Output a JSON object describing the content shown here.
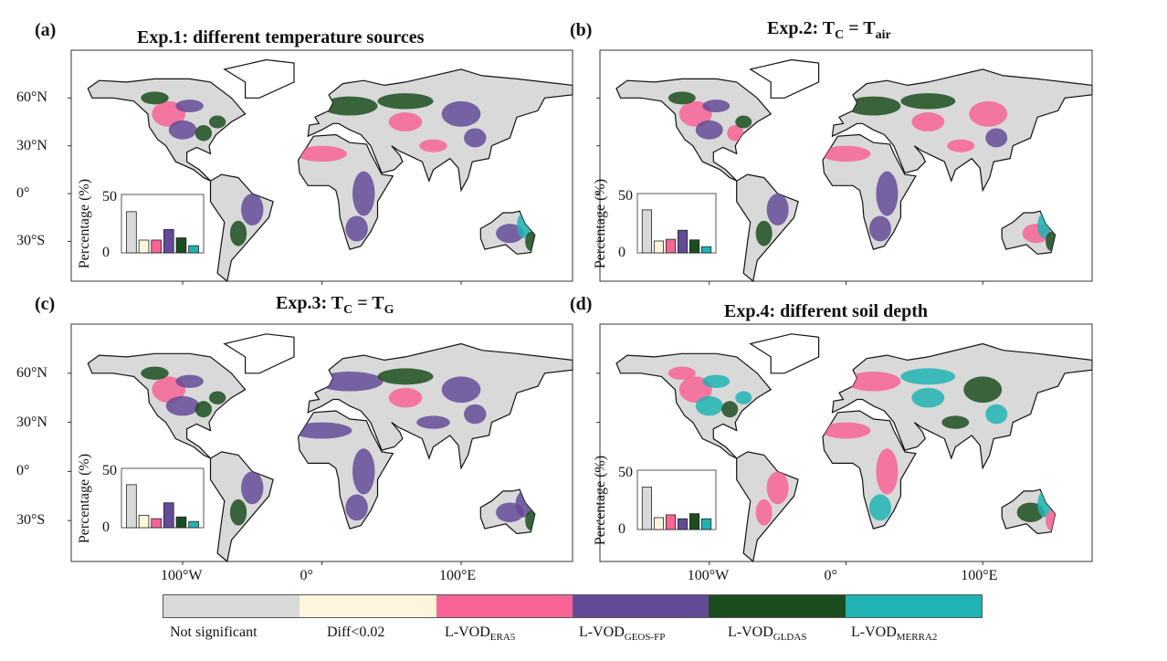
{
  "panels": [
    {
      "id": "a",
      "label": "(a)",
      "title": [
        {
          "text": "Exp.1: different temperature sources"
        }
      ]
    },
    {
      "id": "b",
      "label": "(b)",
      "title": [
        {
          "text": "Exp.2: T"
        },
        {
          "sub": "C"
        },
        {
          "text": " = T"
        },
        {
          "sub": "air"
        }
      ]
    },
    {
      "id": "c",
      "label": "(c)",
      "title": [
        {
          "text": "Exp.3: T"
        },
        {
          "sub": "C"
        },
        {
          "text": " = T"
        },
        {
          "sub": "G"
        }
      ]
    },
    {
      "id": "d",
      "label": "(d)",
      "title": [
        {
          "text": "Exp.4: different soil depth"
        }
      ]
    }
  ],
  "lat_ticks": [
    "60°N",
    "30°N",
    "0°",
    "30°S"
  ],
  "lon_ticks": [
    "100°W",
    "0°",
    "100°E"
  ],
  "legend": [
    {
      "text": "Not significant",
      "sub": "",
      "color": "#d9d9d9"
    },
    {
      "text": "Diff<0.02",
      "sub": "",
      "color": "#fdf6dc"
    },
    {
      "text": "L-VOD",
      "sub": "ERA5",
      "color": "#f76495"
    },
    {
      "text": "L-VOD",
      "sub": "GEOS-FP",
      "color": "#644b98"
    },
    {
      "text": "L-VOD",
      "sub": "GLDAS",
      "color": "#1b4d1e"
    },
    {
      "text": "L-VOD",
      "sub": "MERRA2",
      "color": "#20b3b3"
    }
  ],
  "chart_data": [
    {
      "type": "bar",
      "panel": "a",
      "ylabel": "Percentage (%)",
      "ylim": [
        0,
        50
      ],
      "yticks": [
        "0",
        "50"
      ],
      "categories": [
        "Not significant",
        "Diff<0.02",
        "L-VOD ERA5",
        "L-VOD GEOS-FP",
        "L-VOD GLDAS",
        "L-VOD MERRA2"
      ],
      "values": [
        37,
        11.5,
        11.5,
        21,
        13.5,
        6.5
      ]
    },
    {
      "type": "bar",
      "panel": "b",
      "ylabel": "Percentage (%)",
      "ylim": [
        0,
        50
      ],
      "yticks": [
        "0",
        "50"
      ],
      "categories": [
        "Not significant",
        "Diff<0.02",
        "L-VOD ERA5",
        "L-VOD GEOS-FP",
        "L-VOD GLDAS",
        "L-VOD MERRA2"
      ],
      "values": [
        38,
        10.5,
        12,
        20,
        11.5,
        5.5
      ]
    },
    {
      "type": "bar",
      "panel": "c",
      "ylabel": "Percentage (%)",
      "ylim": [
        0,
        50
      ],
      "yticks": [
        "0",
        "50"
      ],
      "categories": [
        "Not significant",
        "Diff<0.02",
        "L-VOD ERA5",
        "L-VOD GEOS-FP",
        "L-VOD GLDAS",
        "L-VOD MERRA2"
      ],
      "values": [
        38,
        11,
        8,
        22,
        9.5,
        5.5
      ]
    },
    {
      "type": "bar",
      "panel": "d",
      "ylabel": "Percentage (%)",
      "ylim": [
        0,
        50
      ],
      "yticks": [
        "0",
        "50"
      ],
      "categories": [
        "Not significant",
        "Diff<0.02",
        "L-VOD ERA5",
        "L-VOD GEOS-FP",
        "L-VOD GLDAS",
        "L-VOD MERRA2"
      ],
      "values": [
        37.5,
        10.5,
        13,
        9.5,
        14,
        9.5
      ]
    }
  ]
}
